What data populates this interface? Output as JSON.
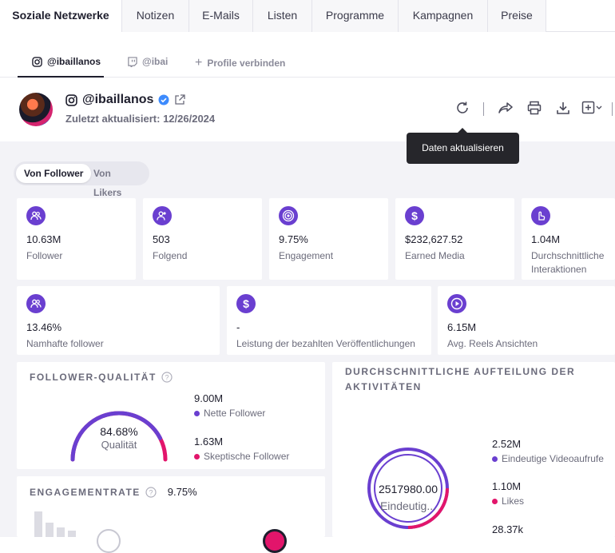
{
  "tabs": [
    "Soziale Netzwerke",
    "Notizen",
    "E-Mails",
    "Listen",
    "Programme",
    "Kampagnen",
    "Preise"
  ],
  "subtabs": {
    "instagram": "@ibaillanos",
    "twitch": "@ibai",
    "connect": "Profile verbinden"
  },
  "profile": {
    "handle": "@ibaillanos",
    "updated": "Zuletzt aktualisiert: 12/26/2024"
  },
  "tooltip": "Daten aktualisieren",
  "toggle": {
    "follower": "Von Follower",
    "likers": "Von Likers"
  },
  "metrics_row1": [
    {
      "value": "10.63M",
      "label": "Follower",
      "icon": "users-icon"
    },
    {
      "value": "503",
      "label": "Folgend",
      "icon": "user-follow-icon"
    },
    {
      "value": "9.75%",
      "label": "Engagement",
      "icon": "target-icon"
    },
    {
      "value": "$232,627.52",
      "label": "Earned Media",
      "icon": "dollar-icon"
    },
    {
      "value": "1.04M",
      "label": "Durchschnittliche Interaktionen",
      "icon": "hand-pointer-icon"
    }
  ],
  "metrics_row2": [
    {
      "value": "13.46%",
      "label": "Namhafte follower",
      "icon": "users-icon"
    },
    {
      "value": "-",
      "label": "Leistung der bezahlten Veröffentlichungen",
      "icon": "dollar-icon"
    },
    {
      "value": "6.15M",
      "label": "Avg. Reels Ansichten",
      "icon": "play-icon"
    }
  ],
  "follower_quality": {
    "title": "Follower-Qualität",
    "percent": "84.68%",
    "percent_value": 84.68,
    "caption": "Qualität",
    "net_value": "9.00M",
    "net_label": "Nette Follower",
    "skeptic_value": "1.63M",
    "skeptic_label": "Skeptische Follower",
    "colors": {
      "net": "#6a3fd0",
      "skeptic": "#e2156b"
    }
  },
  "engagement": {
    "title": "Engagementrate",
    "value": "9.75%"
  },
  "activities": {
    "title": "Durchschnittliche Aufteilung der Aktivitäten",
    "center_value": "2517980.00",
    "center_label": "Eindeutig...",
    "items": [
      {
        "value": "2.52M",
        "label": "Eindeutige Videoaufrufe",
        "color": "#6a3fd0"
      },
      {
        "value": "1.10M",
        "label": "Likes",
        "color": "#e2156b"
      },
      {
        "value": "28.37k",
        "label": "",
        "color": "#6a3fd0"
      }
    ]
  },
  "colors": {
    "accent": "#6a3fd0",
    "pink": "#e2156b",
    "verified": "#3d8bfd"
  }
}
